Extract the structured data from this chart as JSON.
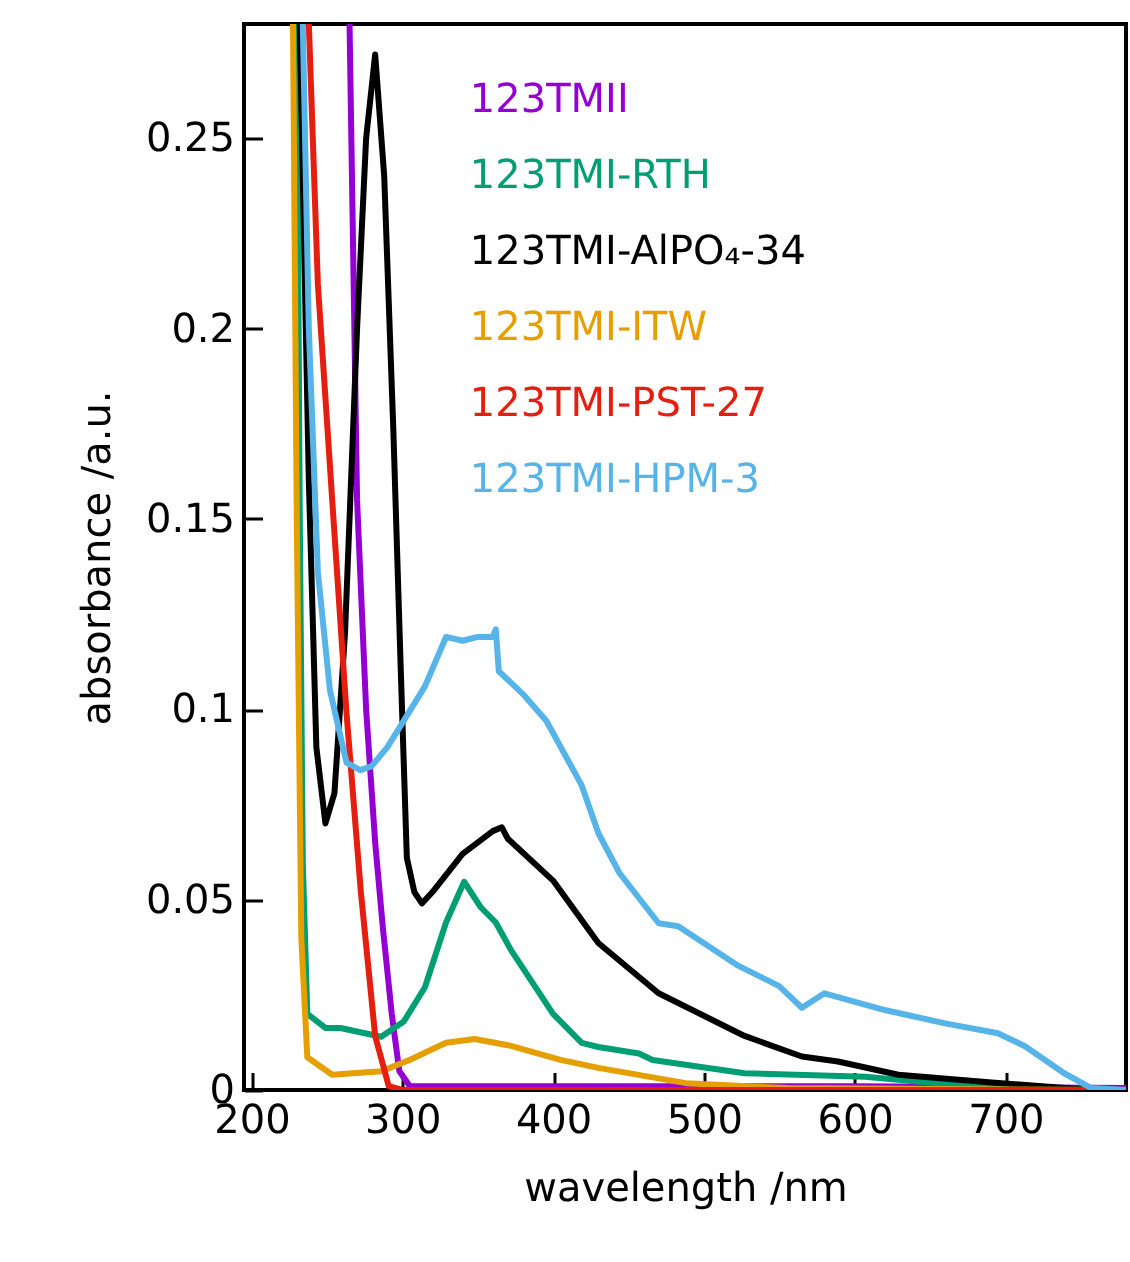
{
  "chart_data": {
    "type": "line",
    "xlabel": "wavelength /nm",
    "ylabel": "absorbance /a.u.",
    "xlim": [
      195,
      780
    ],
    "xticks": [
      200,
      300,
      400,
      500,
      600,
      700
    ],
    "ylim": [
      0,
      0.28
    ],
    "yticks": [
      0,
      0.05,
      0.1,
      0.15,
      0.2,
      0.25
    ],
    "grid": false,
    "legend": "top",
    "marker": "none",
    "line_style": "solid",
    "series": [
      {
        "name": "123TMII",
        "color": "#9400d3",
        "x": [
          265,
          270,
          276,
          282,
          287,
          293,
          298,
          305,
          400,
          600,
          780
        ],
        "values": [
          0.28,
          0.155,
          0.1,
          0.065,
          0.043,
          0.02,
          0.005,
          0.001,
          0.001,
          0.001,
          0.0005
        ]
      },
      {
        "name": "123TMI-RTH",
        "color": "#009e73",
        "x": [
          230,
          232,
          234,
          237,
          249,
          259,
          286,
          301,
          315,
          329,
          341,
          352,
          362,
          372,
          400,
          419,
          430,
          457,
          466,
          527,
          607,
          678,
          780
        ],
        "values": [
          0.28,
          0.15,
          0.06,
          0.02,
          0.0163,
          0.0163,
          0.014,
          0.018,
          0.027,
          0.044,
          0.0547,
          0.048,
          0.044,
          0.0368,
          0.02,
          0.0124,
          0.0113,
          0.0096,
          0.0079,
          0.0044,
          0.0035,
          0.0009,
          0
        ]
      },
      {
        "name": "123TMI-AlPO₄-34",
        "color": "#000000",
        "x": [
          232,
          238,
          243,
          249,
          255,
          262,
          270,
          276,
          282,
          288,
          294,
          299,
          303,
          308,
          313,
          320,
          340,
          360,
          366,
          370,
          400,
          430,
          470,
          527,
          565,
          589,
          629,
          691,
          757,
          780
        ],
        "values": [
          0.28,
          0.16,
          0.09,
          0.07,
          0.078,
          0.12,
          0.2,
          0.25,
          0.272,
          0.24,
          0.174,
          0.11,
          0.061,
          0.052,
          0.049,
          0.052,
          0.062,
          0.068,
          0.069,
          0.066,
          0.055,
          0.0386,
          0.0254,
          0.0142,
          0.0088,
          0.0075,
          0.004,
          0.002,
          0,
          0
        ]
      },
      {
        "name": "123TMI-ITW",
        "color": "#e69f00",
        "x": [
          227.5,
          230,
          233,
          237,
          253.5,
          286,
          305.5,
          329,
          348,
          372,
          405,
          430,
          488,
          555,
          780
        ],
        "values": [
          0.28,
          0.15,
          0.04,
          0.0086,
          0.004,
          0.0049,
          0.008,
          0.0124,
          0.0134,
          0.0116,
          0.0079,
          0.0058,
          0.0018,
          0.0005,
          0
        ]
      },
      {
        "name": "123TMI-PST-27",
        "color": "#e51e10",
        "x": [
          238,
          244,
          253.5,
          263,
          272.5,
          282,
          291,
          300,
          780
        ],
        "values": [
          0.28,
          0.2116,
          0.155,
          0.099,
          0.052,
          0.0142,
          0.001,
          0,
          0
        ]
      },
      {
        "name": "123TMI-HPM-3",
        "color": "#56b4e9",
        "x": [
          234,
          238,
          244,
          252,
          263,
          272,
          279.5,
          290,
          301,
          315,
          329,
          340,
          350,
          360,
          362,
          364,
          380,
          395.5,
          419,
          430,
          444,
          470,
          483,
          523,
          550,
          565,
          580,
          620,
          660,
          695,
          713,
          739,
          757,
          780
        ],
        "values": [
          0.28,
          0.2,
          0.136,
          0.105,
          0.086,
          0.084,
          0.085,
          0.09,
          0.097,
          0.106,
          0.119,
          0.118,
          0.119,
          0.119,
          0.121,
          0.11,
          0.104,
          0.097,
          0.08,
          0.0675,
          0.057,
          0.0438,
          0.043,
          0.0326,
          0.0273,
          0.0216,
          0.0254,
          0.021,
          0.0175,
          0.0149,
          0.0115,
          0.0044,
          0.0005,
          0
        ]
      }
    ]
  }
}
